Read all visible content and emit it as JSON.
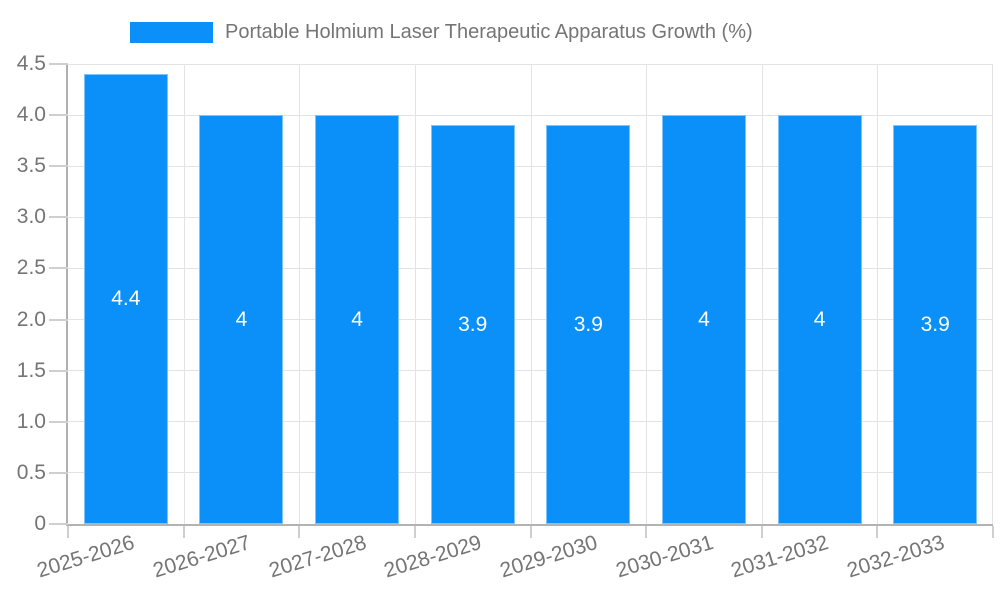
{
  "legend": {
    "swatch_color": "#0a90f8"
  },
  "chart_data": {
    "type": "bar",
    "series_name": "Portable Holmium Laser Therapeutic Apparatus Growth (%)",
    "categories": [
      "2025-2026",
      "2026-2027",
      "2027-2028",
      "2028-2029",
      "2029-2030",
      "2030-2031",
      "2031-2032",
      "2032-2033"
    ],
    "values": [
      4.4,
      4,
      4,
      3.9,
      3.9,
      4,
      4,
      3.9
    ],
    "bar_labels": [
      "4.4",
      "4",
      "4",
      "3.9",
      "3.9",
      "4",
      "4",
      "3.9"
    ],
    "y_ticks": [
      "4.5",
      "4.0",
      "3.5",
      "3.0",
      "2.5",
      "2.0",
      "1.5",
      "1.0",
      "0.5",
      "0"
    ],
    "ylim": [
      0,
      4.5
    ],
    "xlabel": "",
    "ylabel": "",
    "grid": true,
    "legend_position": "top",
    "colors": {
      "bar": "#0a90f8",
      "bar_border": "#7ec3fb",
      "grid": "#e3e3e3",
      "axis": "#b0b0b0",
      "tick": "#cfcfcf",
      "tick_text": "#757575",
      "bar_label": "#ffffff"
    }
  }
}
